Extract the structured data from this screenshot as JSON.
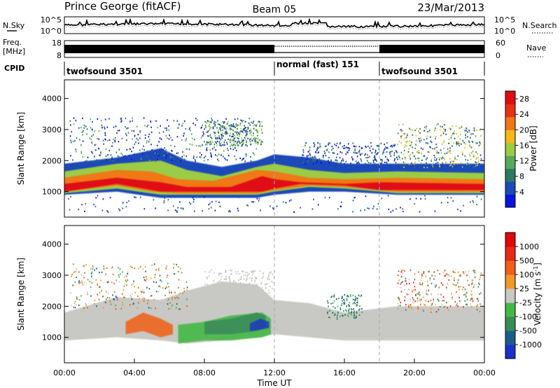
{
  "header": {
    "radar": "Prince George (fitACF)",
    "beam": "Beam 05",
    "date": "23/Mar/2013"
  },
  "colors": {
    "frame": "#000000",
    "gap": "#ffffff",
    "ground_scatter": "#c8c8c4",
    "mode_divider": "#aaaaaa"
  },
  "chart_data": [
    {
      "type": "line",
      "panel": "noise",
      "left_label": "N.Sky",
      "right_label": "N.Search",
      "left_ticks": [
        "10^5",
        "10^0"
      ],
      "right_ticks": [
        "10^5",
        "10^0"
      ]
    },
    {
      "type": "line",
      "panel": "frequency",
      "left_label_lines": [
        "Freq.",
        "[MHz]"
      ],
      "right_label": "Nave",
      "left_ticks": [
        18,
        8
      ],
      "right_ticks": [
        60,
        0
      ]
    },
    {
      "type": "table",
      "panel": "cpid",
      "label": "CPID",
      "segments": [
        {
          "start_ut": 0,
          "end_ut": 12,
          "name": "twofsound 3501"
        },
        {
          "start_ut": 12,
          "end_ut": 18,
          "name": "normal (fast) 151"
        },
        {
          "start_ut": 18,
          "end_ut": 24,
          "name": "twofsound 3501"
        }
      ]
    },
    {
      "type": "heatmap",
      "panel": "power",
      "ylabel": "Slant Range [km]",
      "xlim": [
        0,
        24
      ],
      "ylim": [
        180,
        4600
      ],
      "yticks": [
        1000,
        2000,
        3000,
        4000
      ],
      "colorbar": {
        "label": "Power [dB]",
        "ticks": [
          4,
          8,
          12,
          16,
          20,
          24,
          28
        ],
        "range": [
          0,
          30
        ],
        "colors": [
          "#0a14e0",
          "#1c4ab8",
          "#2e7a64",
          "#5aa85a",
          "#9ccc44",
          "#f4b81a",
          "#f07818",
          "#e83216",
          "#e00c12"
        ]
      }
    },
    {
      "type": "heatmap",
      "panel": "velocity",
      "ylabel": "Slant Range [km]",
      "xlabel": "Time UT",
      "xlim": [
        0,
        24
      ],
      "ylim": [
        180,
        4600
      ],
      "yticks": [
        1000,
        2000,
        3000,
        4000
      ],
      "xticks": [
        "00:00",
        "04:00",
        "08:00",
        "12:00",
        "16:00",
        "20:00",
        "00:00"
      ],
      "colorbar": {
        "label": "Velocity [m s^-1]",
        "ticks": [
          "1000",
          "500",
          "100",
          "25",
          "-25",
          "-100",
          "-500",
          "-1000"
        ],
        "colors": [
          "#1a30c8",
          "#1c5c8c",
          "#3a8c5a",
          "#44b844",
          "#c8c8c4",
          "#f09a28",
          "#f06018",
          "#e82818",
          "#e00808"
        ]
      }
    }
  ]
}
